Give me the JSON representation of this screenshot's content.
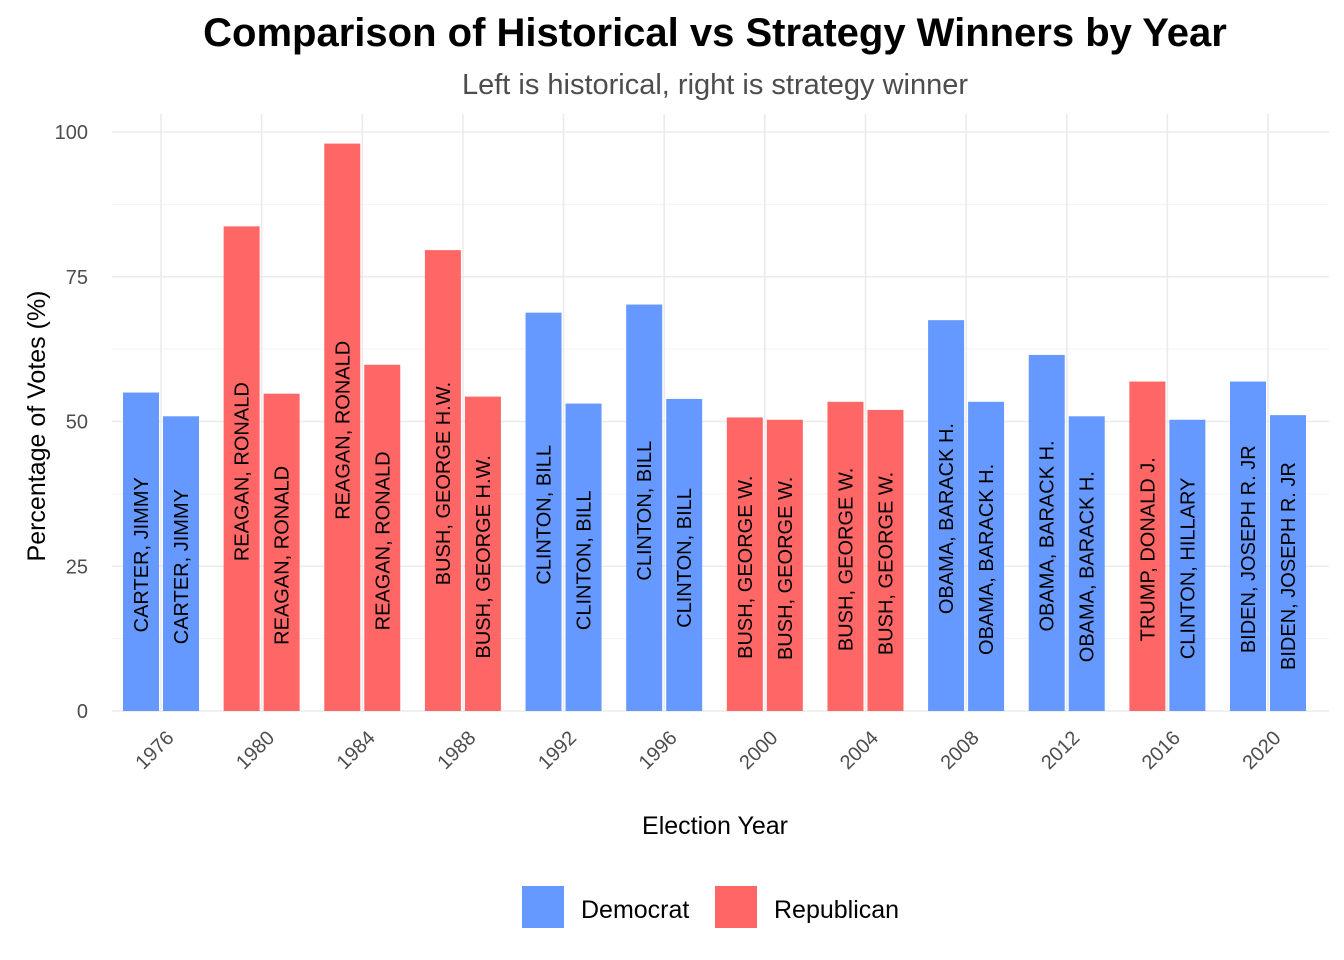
{
  "chart_data": {
    "type": "bar",
    "title": "Comparison of Historical vs Strategy Winners by Year",
    "subtitle": "Left is historical, right is strategy winner",
    "xlabel": "Election Year",
    "ylabel": "Percentage of Votes (%)",
    "ylim": [
      0,
      100
    ],
    "yticks": [
      0,
      25,
      50,
      75,
      100
    ],
    "grid": true,
    "legend_position": "bottom",
    "legend": [
      {
        "key": "Democrat",
        "label": "Democrat",
        "color": "#6699ff"
      },
      {
        "key": "Republican",
        "label": "Republican",
        "color": "#ff6666"
      }
    ],
    "categories": [
      "1976",
      "1980",
      "1984",
      "1988",
      "1992",
      "1996",
      "2000",
      "2004",
      "2008",
      "2012",
      "2016",
      "2020"
    ],
    "series": [
      {
        "name": "historical",
        "values": [
          55.0,
          83.7,
          98.0,
          79.6,
          68.8,
          70.2,
          50.7,
          53.4,
          67.5,
          61.5,
          56.9,
          56.9
        ],
        "parties": [
          "Democrat",
          "Republican",
          "Republican",
          "Republican",
          "Democrat",
          "Democrat",
          "Republican",
          "Republican",
          "Democrat",
          "Democrat",
          "Republican",
          "Democrat"
        ],
        "labels": [
          "CARTER, JIMMY",
          "REAGAN, RONALD",
          "REAGAN, RONALD",
          "BUSH, GEORGE H.W.",
          "CLINTON, BILL",
          "CLINTON, BILL",
          "BUSH, GEORGE W.",
          "BUSH, GEORGE W.",
          "OBAMA, BARACK H.",
          "OBAMA, BARACK H.",
          "TRUMP, DONALD J.",
          "BIDEN, JOSEPH R. JR"
        ]
      },
      {
        "name": "strategy",
        "values": [
          50.9,
          54.8,
          59.8,
          54.3,
          53.1,
          53.9,
          50.3,
          52.0,
          53.4,
          50.9,
          50.3,
          51.1
        ],
        "parties": [
          "Democrat",
          "Republican",
          "Republican",
          "Republican",
          "Democrat",
          "Democrat",
          "Republican",
          "Republican",
          "Democrat",
          "Democrat",
          "Democrat",
          "Democrat"
        ],
        "labels": [
          "CARTER, JIMMY",
          "REAGAN, RONALD",
          "REAGAN, RONALD",
          "BUSH, GEORGE H.W.",
          "CLINTON, BILL",
          "CLINTON, BILL",
          "BUSH, GEORGE W.",
          "BUSH, GEORGE W.",
          "OBAMA, BARACK H.",
          "OBAMA, BARACK H.",
          "CLINTON, HILLARY",
          "BIDEN, JOSEPH R. JR"
        ]
      }
    ]
  }
}
